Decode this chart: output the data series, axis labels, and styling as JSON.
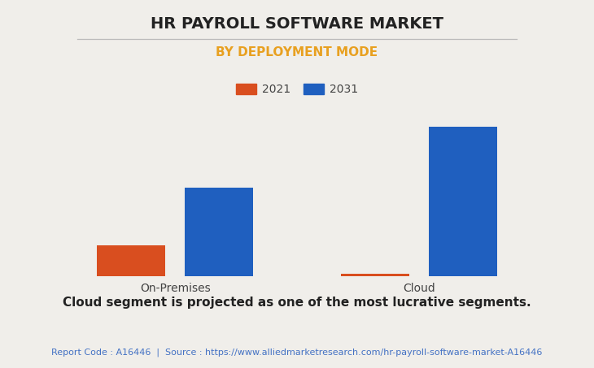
{
  "title": "HR PAYROLL SOFTWARE MARKET",
  "subtitle": "BY DEPLOYMENT MODE",
  "subtitle_color": "#E8A020",
  "categories": [
    "On-Premises",
    "Cloud"
  ],
  "years": [
    "2021",
    "2031"
  ],
  "values_2021": [
    1.8,
    0.12
  ],
  "values_2031": [
    5.2,
    8.8
  ],
  "bar_color_2021": "#D94E1F",
  "bar_color_2031": "#1F5FBF",
  "bg_color": "#F0EEEA",
  "plot_bg_color": "#F0EEEA",
  "grid_color": "#CCCCCC",
  "annotation": "Cloud segment is projected as one of the most lucrative segments.",
  "footer": "Report Code : A16446  |  Source : https://www.alliedmarketresearch.com/hr-payroll-software-market-A16446",
  "footer_color": "#4472C4",
  "title_fontsize": 14,
  "subtitle_fontsize": 11,
  "annotation_fontsize": 11,
  "footer_fontsize": 8,
  "bar_width": 0.28,
  "ylim": [
    0,
    10
  ]
}
